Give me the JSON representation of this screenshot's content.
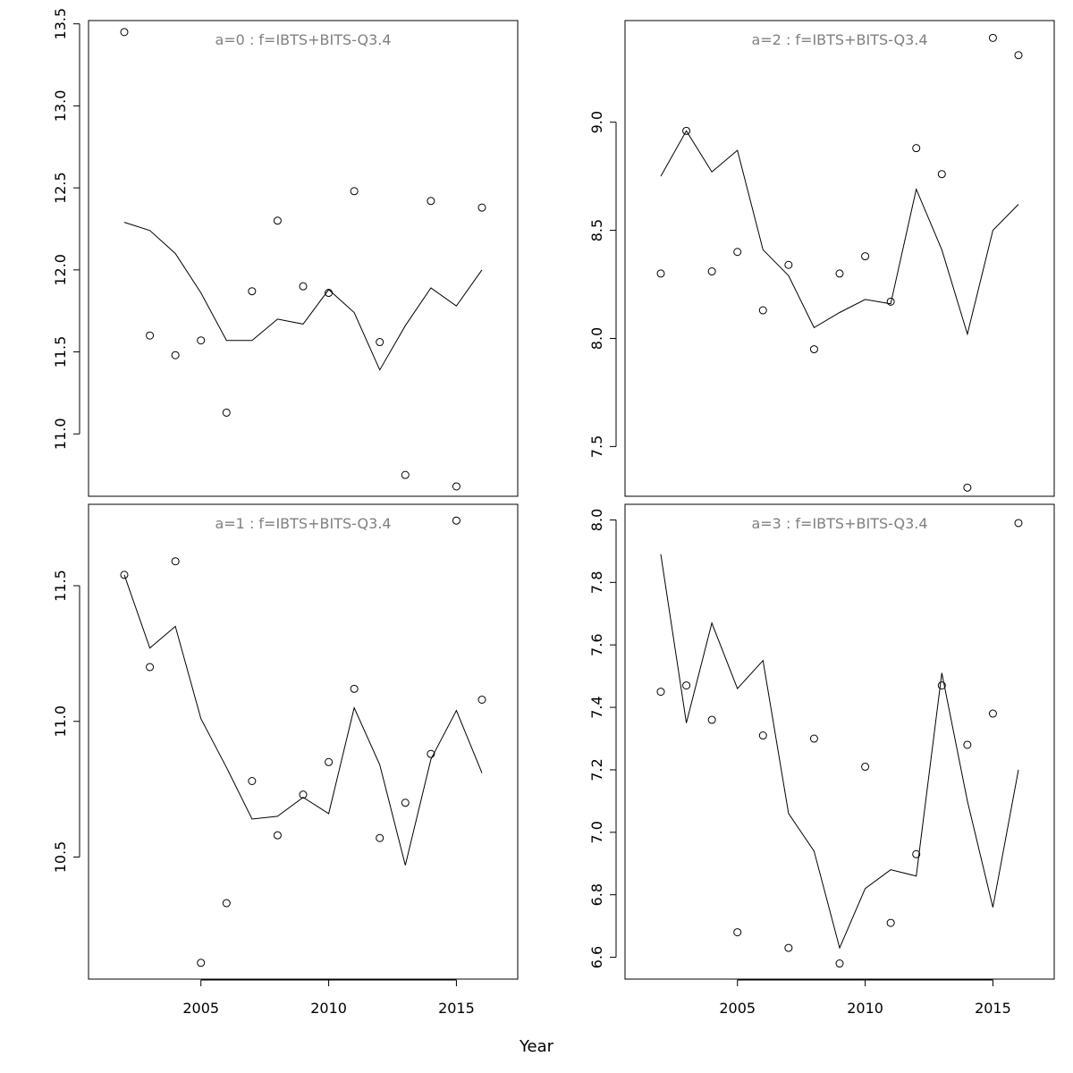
{
  "xlabel": "Year",
  "chart_data": [
    {
      "type": "scatter",
      "panel": "top-left",
      "title": "a=0  :  f=IBTS+BITS-Q3.4",
      "x": [
        2002,
        2003,
        2004,
        2005,
        2006,
        2007,
        2008,
        2009,
        2010,
        2011,
        2012,
        2013,
        2014,
        2015,
        2016
      ],
      "series": [
        {
          "kind": "points",
          "values": [
            13.45,
            11.6,
            11.48,
            11.57,
            11.13,
            11.87,
            12.3,
            11.9,
            11.86,
            12.48,
            11.56,
            10.75,
            12.42,
            10.68,
            12.38
          ]
        },
        {
          "kind": "line",
          "values": [
            12.29,
            12.24,
            12.1,
            11.86,
            11.57,
            11.57,
            11.7,
            11.67,
            11.88,
            11.74,
            11.39,
            11.66,
            11.89,
            11.78,
            12.0
          ]
        }
      ],
      "xlim": [
        2000.6,
        2017.4
      ],
      "ylim": [
        10.62,
        13.52
      ],
      "yticks": [
        11.0,
        11.5,
        12.0,
        12.5,
        13.0,
        13.5
      ],
      "ytick_labels": [
        "11.0",
        "11.5",
        "12.0",
        "12.5",
        "13.0",
        "13.5"
      ],
      "xticks": [],
      "xtick_labels": []
    },
    {
      "type": "scatter",
      "panel": "top-right",
      "title": "a=2  :  f=IBTS+BITS-Q3.4",
      "x": [
        2002,
        2003,
        2004,
        2005,
        2006,
        2007,
        2008,
        2009,
        2010,
        2011,
        2012,
        2013,
        2014,
        2015,
        2016
      ],
      "series": [
        {
          "kind": "points",
          "values": [
            8.3,
            8.96,
            8.31,
            8.4,
            8.13,
            8.34,
            7.95,
            8.3,
            8.38,
            8.17,
            8.88,
            8.76,
            7.31,
            9.39,
            9.31
          ]
        },
        {
          "kind": "line",
          "values": [
            8.75,
            8.96,
            8.77,
            8.87,
            8.41,
            8.29,
            8.05,
            8.12,
            8.18,
            8.16,
            8.69,
            8.41,
            8.02,
            8.5,
            8.62
          ]
        }
      ],
      "xlim": [
        2000.6,
        2017.4
      ],
      "ylim": [
        7.27,
        9.47
      ],
      "yticks": [
        7.5,
        8.0,
        8.5,
        9.0
      ],
      "ytick_labels": [
        "7.5",
        "8.0",
        "8.5",
        "9.0"
      ],
      "xticks": [],
      "xtick_labels": []
    },
    {
      "type": "scatter",
      "panel": "bottom-left",
      "title": "a=1  :  f=IBTS+BITS-Q3.4",
      "x": [
        2002,
        2003,
        2004,
        2005,
        2006,
        2007,
        2008,
        2009,
        2010,
        2011,
        2012,
        2013,
        2014,
        2015,
        2016
      ],
      "series": [
        {
          "kind": "points",
          "values": [
            11.54,
            11.2,
            11.59,
            10.11,
            10.33,
            10.78,
            10.58,
            10.73,
            10.85,
            11.12,
            10.57,
            10.7,
            10.88,
            11.74,
            11.08
          ]
        },
        {
          "kind": "line",
          "values": [
            11.54,
            11.27,
            11.35,
            11.01,
            10.83,
            10.64,
            10.65,
            10.72,
            10.66,
            11.05,
            10.84,
            10.47,
            10.86,
            11.04,
            10.81
          ]
        }
      ],
      "xlim": [
        2000.6,
        2017.4
      ],
      "ylim": [
        10.05,
        11.8
      ],
      "yticks": [
        10.5,
        11.0,
        11.5
      ],
      "ytick_labels": [
        "10.5",
        "11.0",
        "11.5"
      ],
      "xticks": [
        2005,
        2010,
        2015
      ],
      "xtick_labels": [
        "2005",
        "2010",
        "2015"
      ]
    },
    {
      "type": "scatter",
      "panel": "bottom-right",
      "title": "a=3  :  f=IBTS+BITS-Q3.4",
      "x": [
        2002,
        2003,
        2004,
        2005,
        2006,
        2007,
        2008,
        2009,
        2010,
        2011,
        2012,
        2013,
        2014,
        2015,
        2016
      ],
      "series": [
        {
          "kind": "points",
          "values": [
            7.45,
            7.47,
            7.36,
            6.68,
            7.31,
            6.63,
            7.3,
            6.58,
            7.21,
            6.71,
            6.93,
            7.47,
            7.28,
            7.38,
            7.99
          ]
        },
        {
          "kind": "line",
          "values": [
            7.89,
            7.35,
            7.67,
            7.46,
            7.55,
            7.06,
            6.94,
            6.63,
            6.82,
            6.88,
            6.86,
            7.51,
            7.1,
            6.76,
            7.2
          ]
        }
      ],
      "xlim": [
        2000.6,
        2017.4
      ],
      "ylim": [
        6.53,
        8.05
      ],
      "yticks": [
        6.6,
        6.8,
        7.0,
        7.2,
        7.4,
        7.6,
        7.8,
        8.0
      ],
      "ytick_labels": [
        "6.6",
        "6.8",
        "7.0",
        "7.2",
        "7.4",
        "7.6",
        "7.8",
        "8.0"
      ],
      "xticks": [
        2005,
        2010,
        2015
      ],
      "xtick_labels": [
        "2005",
        "2010",
        "2015"
      ]
    }
  ]
}
